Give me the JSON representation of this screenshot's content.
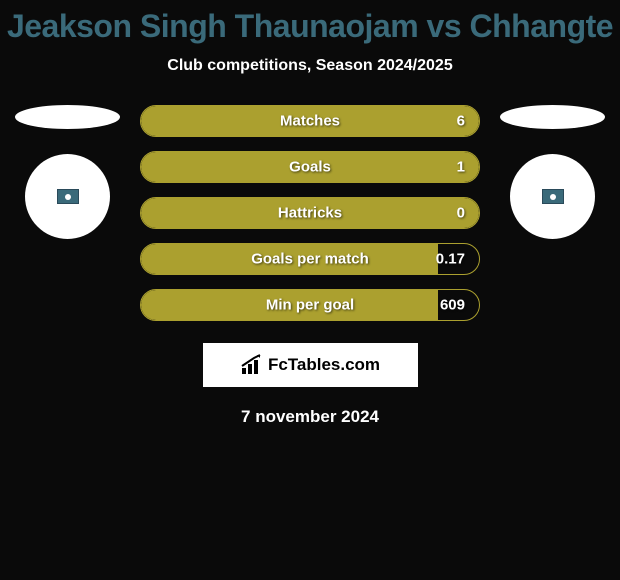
{
  "title": "Jeakson Singh Thaunaojam vs Chhangte",
  "subtitle": "Club competitions, Season 2024/2025",
  "brand_text": "FcTables.com",
  "date_text": "7 november 2024",
  "colors": {
    "background": "#0a0a0a",
    "title_color": "#3a6a7a",
    "bar_fill": "#aba02f",
    "bar_border": "#aba02f",
    "text_white": "#ffffff",
    "brand_bg": "#ffffff",
    "brand_text": "#000000"
  },
  "stats": [
    {
      "label": "Matches",
      "value": "6",
      "fill_pct": 100
    },
    {
      "label": "Goals",
      "value": "1",
      "fill_pct": 100
    },
    {
      "label": "Hattricks",
      "value": "0",
      "fill_pct": 100
    },
    {
      "label": "Goals per match",
      "value": "0.17",
      "fill_pct": 88
    },
    {
      "label": "Min per goal",
      "value": "609",
      "fill_pct": 88
    }
  ]
}
